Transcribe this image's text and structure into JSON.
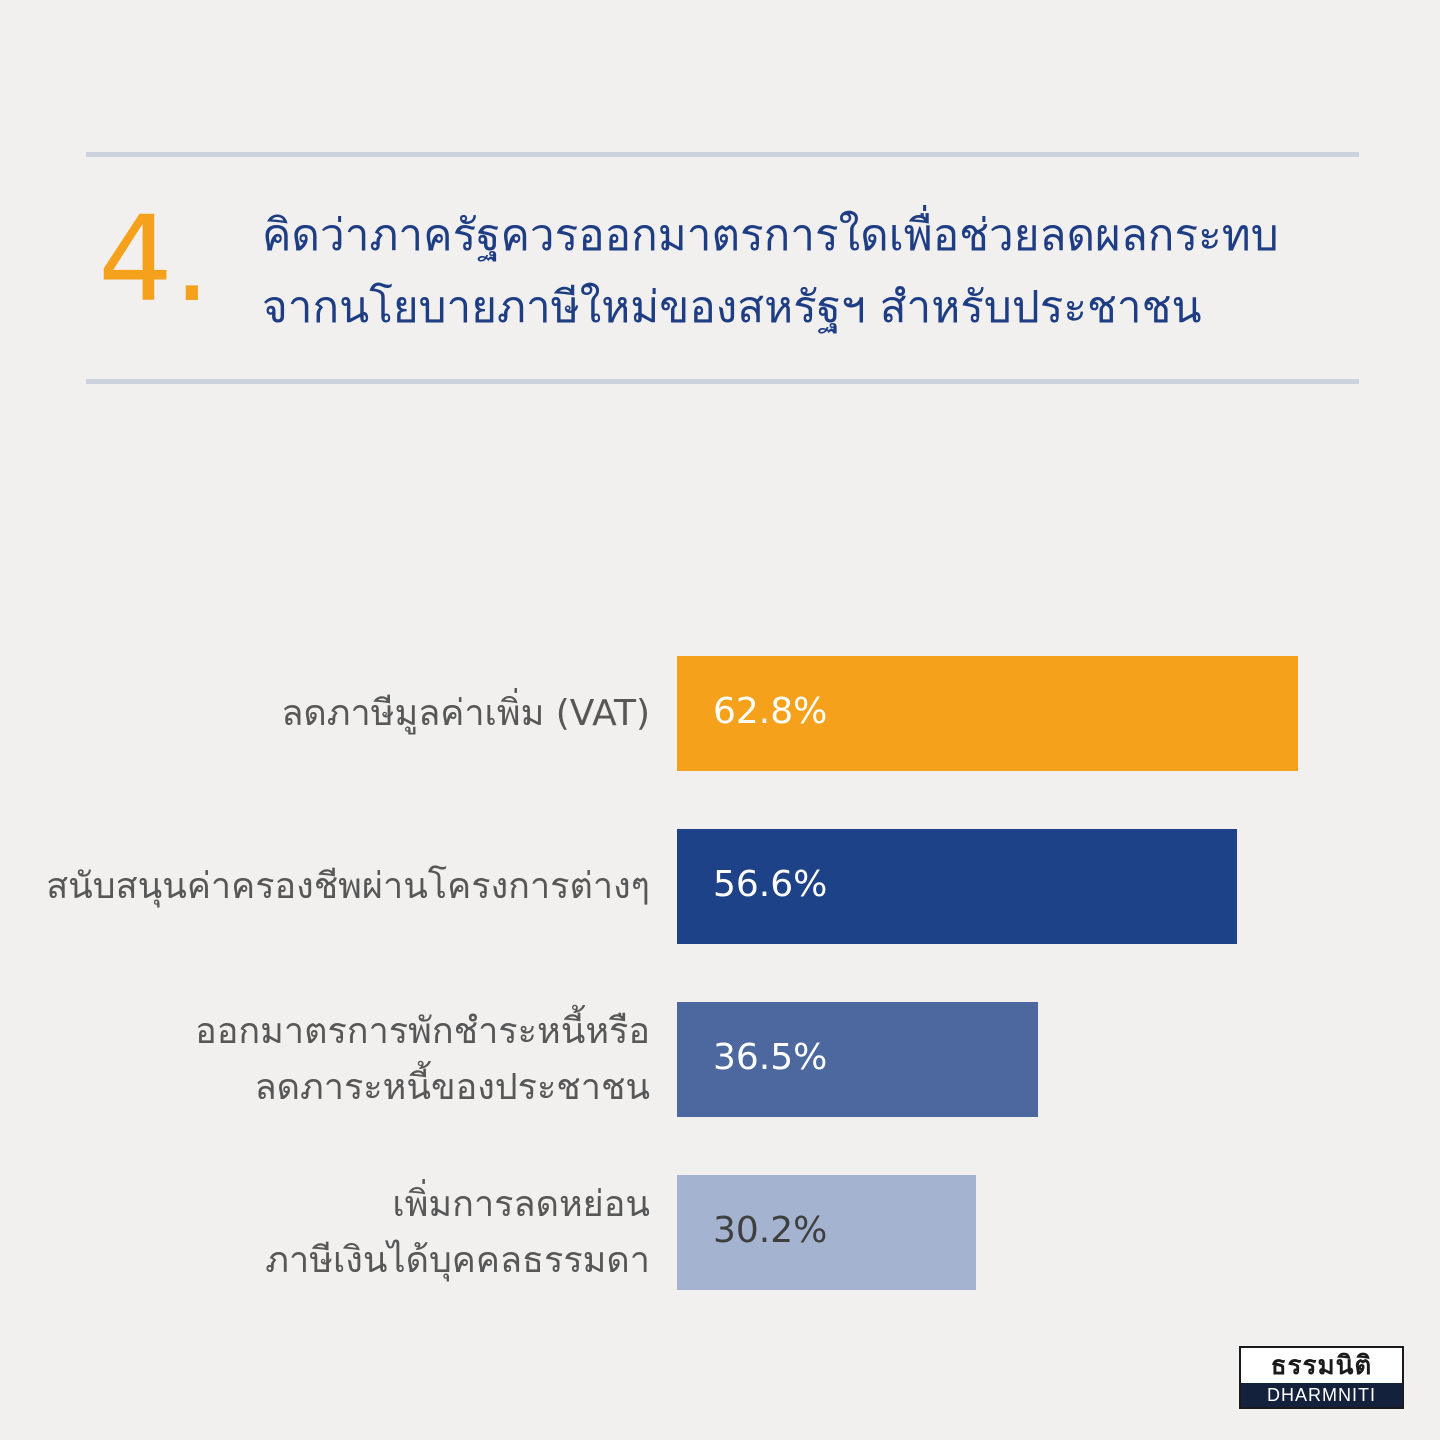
{
  "question": {
    "number": "4.",
    "title_lines": [
      "คิดว่าภาครัฐควรออกมาตรการใดเพื่อช่วยลดผลกระทบ",
      "จากนโยบายภาษีใหม่ของสหรัฐฯ สำหรับประชาชน"
    ]
  },
  "colors": {
    "accent": "#f5a11c",
    "title": "#1e3d83",
    "label": "#575757",
    "rule": "#cdd2df",
    "background": "#f1f0ef"
  },
  "chart_data": {
    "type": "bar",
    "orientation": "horizontal",
    "title": "",
    "xlabel": "",
    "ylabel": "",
    "xlim": [
      0,
      70
    ],
    "grid": false,
    "categories": [
      [
        "ลดภาษีมูลค่าเพิ่ม (VAT)"
      ],
      [
        "สนับสนุนค่าครองชีพผ่านโครงการต่างๆ"
      ],
      [
        "ออกมาตรการพักชำระหนี้หรือ",
        "ลดภาระหนี้ของประชาชน"
      ],
      [
        "เพิ่มการลดหย่อน",
        "ภาษีเงินได้บุคคลธรรมดา"
      ]
    ],
    "values": [
      62.8,
      56.6,
      36.5,
      30.2
    ],
    "value_labels": [
      "62.8%",
      "56.6%",
      "36.5%",
      "30.2%"
    ],
    "bar_colors": [
      "#f5a11c",
      "#1d4287",
      "#4c689f",
      "#a4b3d0"
    ],
    "label_colors": [
      "#ffffff",
      "#ffffff",
      "#ffffff",
      "#3f3f3f"
    ]
  },
  "logo": {
    "thai": "ธรรมนิติ",
    "english": "DHARMNITI"
  }
}
